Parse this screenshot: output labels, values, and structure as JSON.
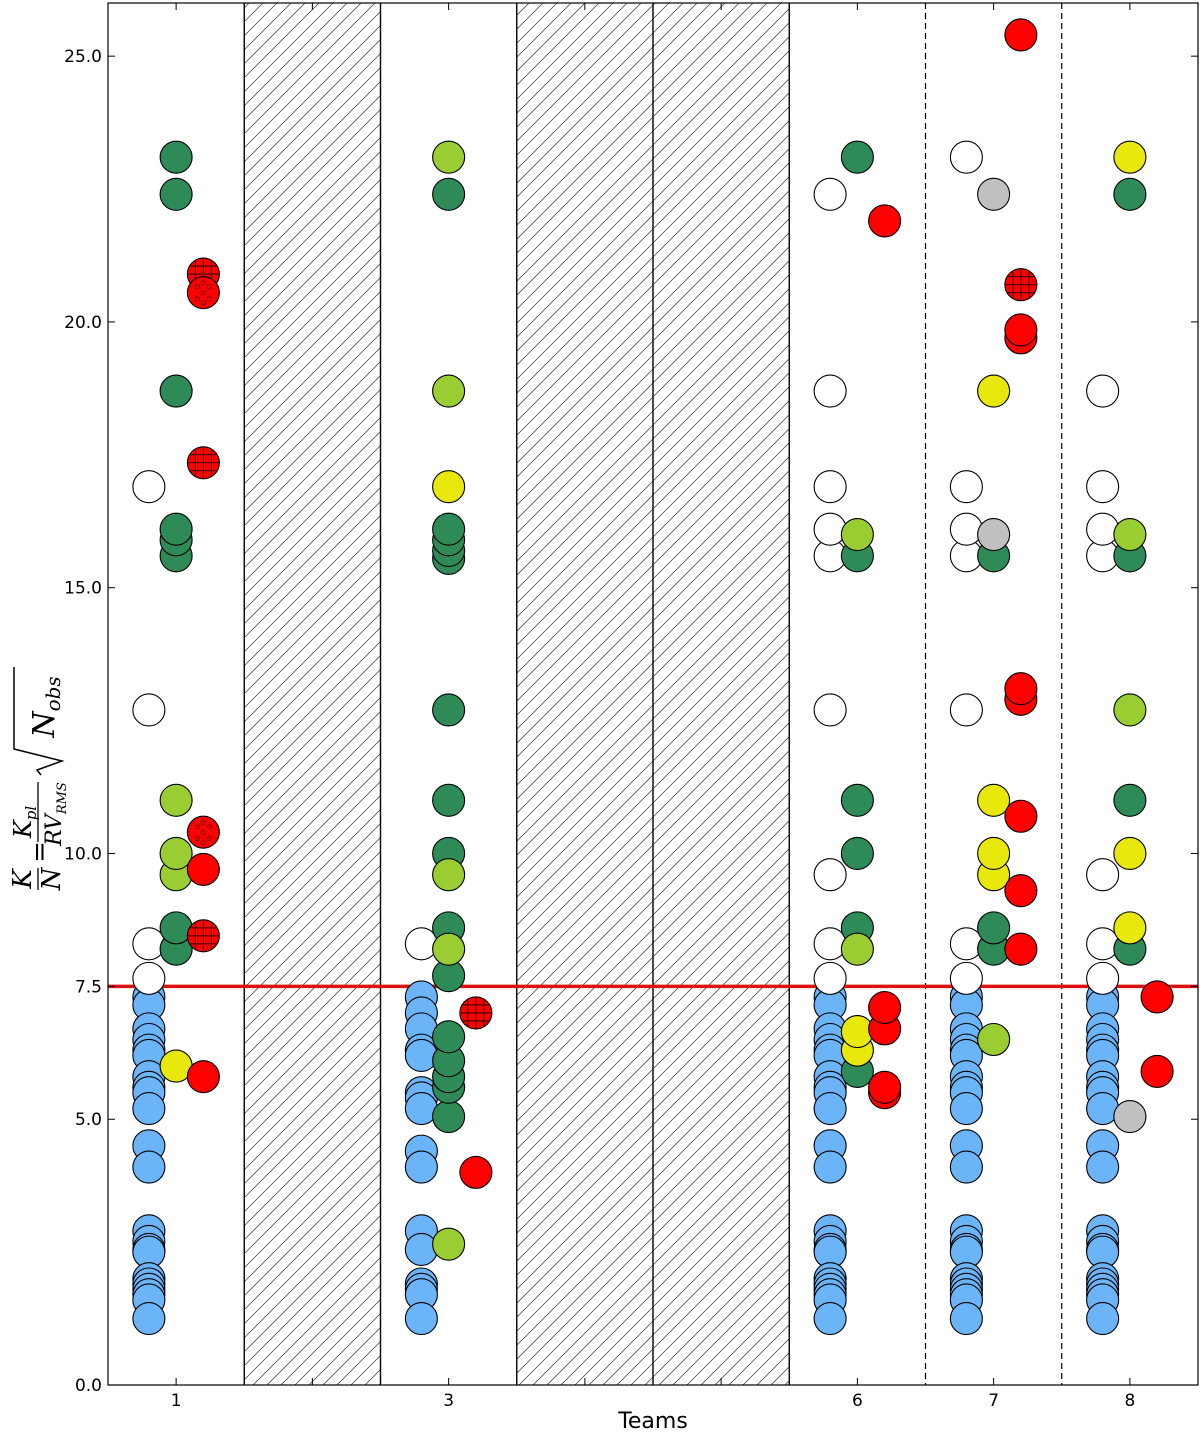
{
  "chart_data": {
    "type": "scatter",
    "xlabel": "Teams",
    "ylabel_parts": {
      "K": "K",
      "N": "N",
      "Kpl": "K",
      "pl_sub": "pl",
      "RV": "RV",
      "rms_sub": "RMS",
      "Nobs": "N",
      "obs_sub": "obs"
    },
    "ylim": [
      0,
      26
    ],
    "y_ticks": [
      "0.0",
      "5.0",
      "7.5",
      "10.0",
      "15.0",
      "20.0",
      "25.0"
    ],
    "y_tick_values": [
      0,
      5,
      7.5,
      10,
      15,
      20,
      25
    ],
    "teams": [
      "1",
      "2",
      "3",
      "4",
      "5",
      "6",
      "7",
      "8"
    ],
    "x_tick_labels": [
      "1",
      "",
      "3",
      "",
      "",
      "6",
      "7",
      "8"
    ],
    "hatched_teams": [
      2,
      4,
      5
    ],
    "dashed_separators_after": [
      6,
      7
    ],
    "threshold": {
      "value": 7.5,
      "color": "#dd1111"
    },
    "colors": {
      "blue": "#6cb4f8",
      "white": "#ffffff",
      "darkgreen": "#2e8b57",
      "lightgreen": "#9acd32",
      "yellow": "#e8e80c",
      "red": "#ff0000",
      "gray": "#c0c0c0"
    },
    "series": [
      {
        "team": 1,
        "offset": -0.2,
        "color": "blue",
        "values": [
          7.3,
          7.15,
          6.7,
          6.5,
          6.3,
          6.2,
          5.8,
          5.6,
          5.5,
          5.2,
          4.5,
          4.1,
          2.9,
          2.7,
          2.55,
          2.5,
          2.0,
          1.9,
          1.8,
          1.7,
          1.6,
          1.25
        ]
      },
      {
        "team": 1,
        "offset": -0.2,
        "color": "white",
        "values": [
          7.65,
          8.3,
          12.7,
          16.9
        ]
      },
      {
        "team": 1,
        "offset": 0,
        "color": "darkgreen",
        "values": [
          8.2,
          8.6,
          15.6,
          15.9,
          16.1,
          18.7,
          22.4,
          23.1
        ]
      },
      {
        "team": 1,
        "offset": 0,
        "color": "lightgreen",
        "values": [
          9.6,
          10.0,
          11.0
        ]
      },
      {
        "team": 1,
        "offset": 0,
        "color": "yellow",
        "values": [
          6.0
        ]
      },
      {
        "team": 1,
        "offset": 0.2,
        "color": "red",
        "values": [
          5.8,
          9.7
        ]
      },
      {
        "team": 1,
        "offset": 0.2,
        "color": "red",
        "pattern": "grid",
        "values": [
          8.45,
          17.35,
          20.9
        ]
      },
      {
        "team": 1,
        "offset": 0.2,
        "color": "red",
        "pattern": "stars",
        "values": [
          10.4,
          20.55
        ]
      },
      {
        "team": 3,
        "offset": -0.2,
        "color": "blue",
        "values": [
          7.3,
          7.0,
          6.7,
          6.3,
          6.2,
          5.5,
          5.4,
          5.2,
          4.4,
          4.1,
          2.9,
          2.55,
          1.9,
          1.8,
          1.7,
          1.25
        ]
      },
      {
        "team": 3,
        "offset": -0.2,
        "color": "white",
        "values": [
          8.3
        ]
      },
      {
        "team": 3,
        "offset": 0,
        "color": "darkgreen",
        "values": [
          5.05,
          5.6,
          5.8,
          6.1,
          6.55,
          7.7,
          8.6,
          10.0,
          11.0,
          12.7,
          15.55,
          15.7,
          15.9,
          16.1,
          22.4
        ]
      },
      {
        "team": 3,
        "offset": 0,
        "color": "lightgreen",
        "values": [
          2.65,
          8.2,
          9.6,
          18.7,
          23.1
        ]
      },
      {
        "team": 3,
        "offset": 0,
        "color": "yellow",
        "values": [
          16.9
        ]
      },
      {
        "team": 3,
        "offset": 0.2,
        "color": "red",
        "values": [
          4.0
        ]
      },
      {
        "team": 3,
        "offset": 0.2,
        "color": "red",
        "pattern": "grid",
        "values": [
          7.0
        ]
      },
      {
        "team": 6,
        "offset": -0.2,
        "color": "blue",
        "values": [
          7.3,
          7.15,
          6.7,
          6.5,
          6.3,
          6.2,
          5.8,
          5.6,
          5.5,
          5.2,
          4.5,
          4.1,
          2.9,
          2.7,
          2.55,
          2.5,
          2.0,
          1.9,
          1.8,
          1.7,
          1.6,
          1.25
        ]
      },
      {
        "team": 6,
        "offset": -0.2,
        "color": "white",
        "values": [
          7.65,
          8.3,
          9.6,
          12.7,
          15.6,
          16.1,
          16.9,
          18.7,
          22.4
        ]
      },
      {
        "team": 6,
        "offset": 0,
        "color": "darkgreen",
        "values": [
          5.9,
          8.6,
          10.0,
          11.0,
          15.6,
          23.1
        ]
      },
      {
        "team": 6,
        "offset": 0,
        "color": "lightgreen",
        "values": [
          8.2,
          16.0
        ]
      },
      {
        "team": 6,
        "offset": 0,
        "color": "yellow",
        "values": [
          6.3,
          6.65
        ]
      },
      {
        "team": 6,
        "offset": 0.2,
        "color": "red",
        "values": [
          5.5,
          5.6,
          6.7,
          7.1,
          21.9
        ]
      },
      {
        "team": 7,
        "offset": -0.2,
        "color": "blue",
        "values": [
          7.3,
          7.15,
          6.7,
          6.5,
          6.3,
          6.2,
          5.8,
          5.6,
          5.5,
          5.2,
          4.5,
          4.1,
          2.9,
          2.7,
          2.55,
          2.5,
          2.0,
          1.9,
          1.8,
          1.7,
          1.6,
          1.25
        ]
      },
      {
        "team": 7,
        "offset": -0.2,
        "color": "white",
        "values": [
          7.65,
          8.3,
          12.7,
          15.6,
          16.1,
          16.9,
          23.1
        ]
      },
      {
        "team": 7,
        "offset": 0,
        "color": "darkgreen",
        "values": [
          8.2,
          8.6,
          15.6
        ]
      },
      {
        "team": 7,
        "offset": 0,
        "color": "lightgreen",
        "values": [
          6.5
        ]
      },
      {
        "team": 7,
        "offset": 0,
        "color": "yellow",
        "values": [
          9.6,
          10.0,
          11.0,
          18.7
        ]
      },
      {
        "team": 7,
        "offset": 0,
        "color": "gray",
        "values": [
          16.0,
          22.4
        ]
      },
      {
        "team": 7,
        "offset": 0.2,
        "color": "red",
        "values": [
          8.2,
          9.3,
          10.7,
          12.9,
          13.1,
          19.7,
          19.85,
          25.4
        ]
      },
      {
        "team": 7,
        "offset": 0.2,
        "color": "red",
        "pattern": "grid",
        "values": [
          20.7
        ]
      },
      {
        "team": 8,
        "offset": -0.2,
        "color": "blue",
        "values": [
          7.3,
          7.15,
          6.7,
          6.5,
          6.3,
          6.2,
          5.8,
          5.6,
          5.5,
          5.2,
          4.5,
          4.1,
          2.9,
          2.7,
          2.55,
          2.5,
          2.0,
          1.9,
          1.8,
          1.7,
          1.6,
          1.25
        ]
      },
      {
        "team": 8,
        "offset": -0.2,
        "color": "white",
        "values": [
          7.65,
          8.3,
          9.6,
          15.6,
          16.1,
          16.9,
          18.7
        ]
      },
      {
        "team": 8,
        "offset": 0,
        "color": "darkgreen",
        "values": [
          8.2,
          11.0,
          15.6,
          22.4
        ]
      },
      {
        "team": 8,
        "offset": 0,
        "color": "lightgreen",
        "values": [
          12.7,
          16.0
        ]
      },
      {
        "team": 8,
        "offset": 0,
        "color": "yellow",
        "values": [
          8.6,
          10.0,
          23.1
        ]
      },
      {
        "team": 8,
        "offset": 0,
        "color": "gray",
        "values": [
          5.05
        ]
      },
      {
        "team": 8,
        "offset": 0.2,
        "color": "red",
        "values": [
          5.9,
          7.3
        ]
      }
    ]
  }
}
